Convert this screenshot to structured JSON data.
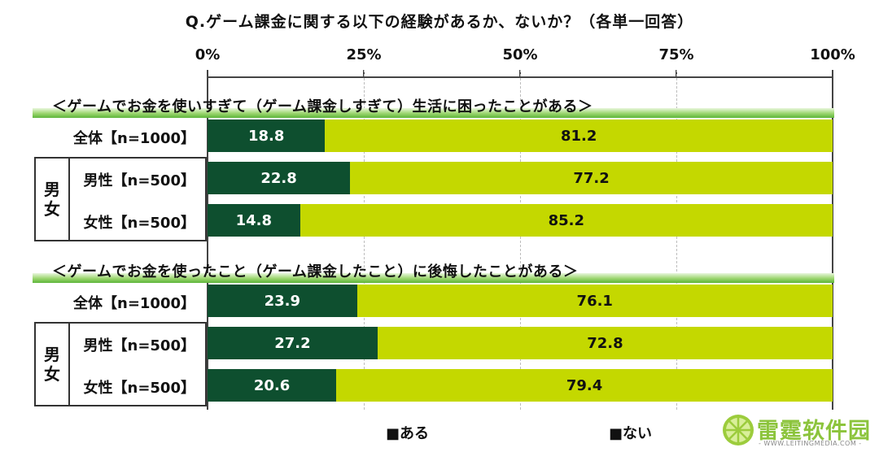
{
  "chart_data": {
    "type": "bar",
    "orientation": "horizontal",
    "stacked": true,
    "percent": true,
    "title": "Q.ゲーム課金に関する以下の経験があるか、ないか？（各単一回答）",
    "x_ticks": [
      "0%",
      "25%",
      "50%",
      "75%",
      "100%"
    ],
    "xlim": [
      0,
      100
    ],
    "grid": true,
    "legend_position": "bottom",
    "legend": [
      {
        "label": "■ある",
        "color": "#0e4f2f"
      },
      {
        "label": "■ない",
        "color": "#c4d800"
      }
    ],
    "series_names": [
      "ある",
      "ない"
    ],
    "groups": [
      {
        "title": "＜ゲームでお金を使いすぎて（ゲーム課金しすぎて）生活に困ったことがある＞",
        "gender_label": "男女",
        "rows": [
          {
            "label": "全体【n=1000】",
            "values": [
              18.8,
              81.2
            ],
            "labels": [
              "18.8",
              "81.2"
            ]
          },
          {
            "label": "男性【n=500】",
            "values": [
              22.8,
              77.2
            ],
            "labels": [
              "22.8",
              "77.2"
            ]
          },
          {
            "label": "女性【n=500】",
            "values": [
              14.8,
              85.2
            ],
            "labels": [
              "14.8",
              "85.2"
            ]
          }
        ]
      },
      {
        "title": "＜ゲームでお金を使ったこと（ゲーム課金したこと）に後悔したことがある＞",
        "gender_label": "男女",
        "rows": [
          {
            "label": "全体【n=1000】",
            "values": [
              23.9,
              76.1
            ],
            "labels": [
              "23.9",
              "76.1"
            ]
          },
          {
            "label": "男性【n=500】",
            "values": [
              27.2,
              72.8
            ],
            "labels": [
              "27.2",
              "72.8"
            ]
          },
          {
            "label": "女性【n=500】",
            "values": [
              20.6,
              79.4
            ],
            "labels": [
              "20.6",
              "79.4"
            ]
          }
        ]
      }
    ]
  },
  "watermark": {
    "text": "雷霆软件园",
    "subtext": "- WWW.LEITINGMEDIA.COM -"
  }
}
